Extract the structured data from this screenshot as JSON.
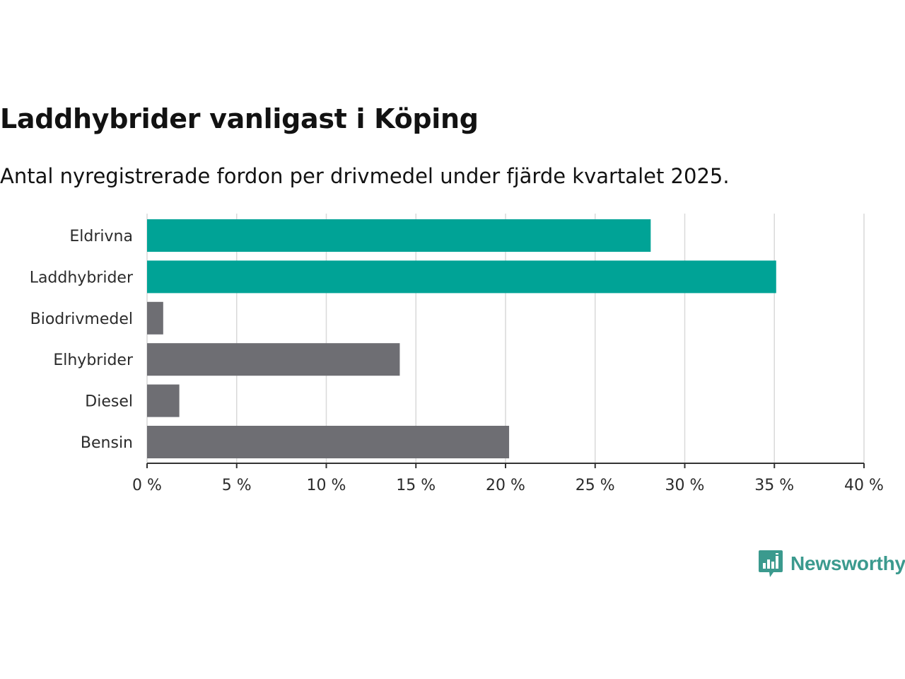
{
  "title": "Laddhybrider vanligast i Köping",
  "subtitle": "Antal nyregistrerade fordon per drivmedel under fjärde kvartalet 2025.",
  "brand": {
    "name": "Newsworthy",
    "color": "#3b9a8e"
  },
  "colors": {
    "highlight": "#00a396",
    "default": "#6e6e73",
    "grid": "#d9d9d9",
    "axis": "#333333"
  },
  "chart_data": {
    "type": "bar",
    "orientation": "horizontal",
    "categories": [
      "Eldrivna",
      "Laddhybrider",
      "Biodrivmedel",
      "Elhybrider",
      "Diesel",
      "Bensin"
    ],
    "values": [
      28.1,
      35.1,
      0.9,
      14.1,
      1.8,
      20.2
    ],
    "highlighted": [
      "Eldrivna",
      "Laddhybrider"
    ],
    "xlim": [
      0,
      40
    ],
    "xticks": [
      0,
      5,
      10,
      15,
      20,
      25,
      30,
      35,
      40
    ],
    "tick_labels": [
      "0 %",
      "5 %",
      "10 %",
      "15 %",
      "20 %",
      "25 %",
      "30 %",
      "35 %",
      "40 %"
    ],
    "grid": true,
    "xlabel": "",
    "ylabel": ""
  }
}
